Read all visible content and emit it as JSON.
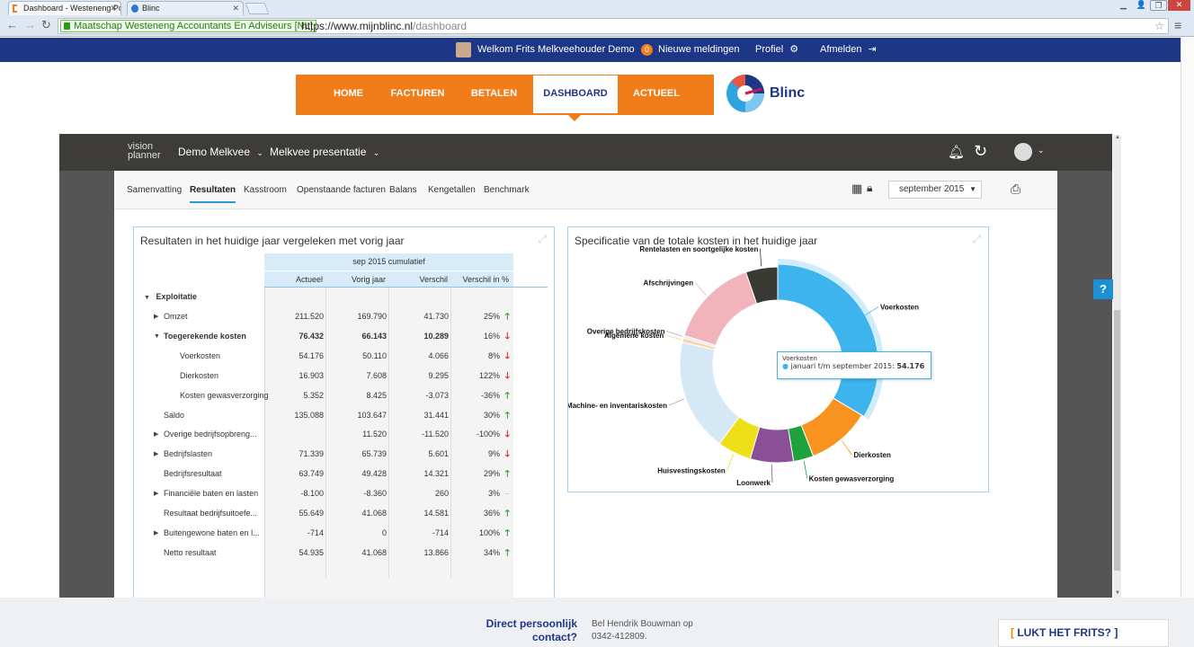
{
  "browser": {
    "tabs": [
      {
        "label": "Dashboard - Westeneng Po"
      },
      {
        "label": "Blinc"
      }
    ],
    "url_secure": "Maatschap Westeneng Accountants En Adviseurs [NL]",
    "url_host": "https://www.mijnblinc.nl",
    "url_path": "/dashboard"
  },
  "topbar": {
    "welcome": "Welkom Frits Melkveehouder Demo",
    "notif_count": "0",
    "notif_label": "Nieuwe meldingen",
    "profile": "Profiel",
    "logout": "Afmelden"
  },
  "menu": {
    "items": [
      "HOME",
      "FACTUREN",
      "BETALEN",
      "DASHBOARD",
      "ACTUEEL"
    ],
    "active": "DASHBOARD",
    "brand": "Blinc"
  },
  "visionplanner": {
    "logo_line1": "vision",
    "logo_line2": "planner",
    "company": "Demo Melkvee",
    "presentation": "Melkvee presentatie"
  },
  "subnav": {
    "items": [
      "Samenvatting",
      "Resultaten",
      "Kasstroom",
      "Openstaande facturen",
      "Balans",
      "Kengetallen",
      "Benchmark"
    ],
    "active": "Resultaten",
    "period": "september 2015"
  },
  "results": {
    "title": "Resultaten in het huidige jaar vergeleken met vorig jaar",
    "group_header": "sep 2015 cumulatief",
    "columns": [
      "Actueel",
      "Vorig jaar",
      "Verschil",
      "Verschil in %"
    ],
    "section": "Exploitatie",
    "rows": [
      {
        "label": "Omzet",
        "expand": "closed",
        "indent": 1,
        "bold": false,
        "actueel": "211.520",
        "vorig": "169.790",
        "verschil": "41.730",
        "pct": "25%",
        "trend": "up"
      },
      {
        "label": "Toegerekende kosten",
        "expand": "open",
        "indent": 1,
        "bold": true,
        "actueel": "76.432",
        "vorig": "66.143",
        "verschil": "10.289",
        "pct": "16%",
        "trend": "down"
      },
      {
        "label": "Voerkosten",
        "expand": "",
        "indent": 2,
        "bold": false,
        "actueel": "54.176",
        "vorig": "50.110",
        "verschil": "4.066",
        "pct": "8%",
        "trend": "down"
      },
      {
        "label": "Dierkosten",
        "expand": "",
        "indent": 2,
        "bold": false,
        "actueel": "16.903",
        "vorig": "7.608",
        "verschil": "9.295",
        "pct": "122%",
        "trend": "down"
      },
      {
        "label": "Kosten gewasverzorging",
        "expand": "",
        "indent": 2,
        "bold": false,
        "actueel": "5.352",
        "vorig": "8.425",
        "verschil": "-3.073",
        "pct": "-36%",
        "trend": "up"
      },
      {
        "label": "Saldo",
        "expand": "",
        "indent": 1,
        "bold": false,
        "actueel": "135.088",
        "vorig": "103.647",
        "verschil": "31.441",
        "pct": "30%",
        "trend": "up"
      },
      {
        "label": "Overige bedrijfsopbreng...",
        "expand": "closed",
        "indent": 1,
        "bold": false,
        "actueel": "",
        "vorig": "11.520",
        "verschil": "-11.520",
        "pct": "-100%",
        "trend": "down"
      },
      {
        "label": "Bedrijfslasten",
        "expand": "closed",
        "indent": 1,
        "bold": false,
        "actueel": "71.339",
        "vorig": "65.739",
        "verschil": "5.601",
        "pct": "9%",
        "trend": "down"
      },
      {
        "label": "Bedrijfsresultaat",
        "expand": "",
        "indent": 1,
        "bold": false,
        "actueel": "63.749",
        "vorig": "49.428",
        "verschil": "14.321",
        "pct": "29%",
        "trend": "up"
      },
      {
        "label": "Financiële baten en lasten",
        "expand": "closed",
        "indent": 1,
        "bold": false,
        "actueel": "-8.100",
        "vorig": "-8.360",
        "verschil": "260",
        "pct": "3%",
        "trend": "none"
      },
      {
        "label": "Resultaat bedrijfsuitoefe...",
        "expand": "",
        "indent": 1,
        "bold": false,
        "actueel": "55.649",
        "vorig": "41.068",
        "verschil": "14.581",
        "pct": "36%",
        "trend": "up"
      },
      {
        "label": "Buitengewone baten en l...",
        "expand": "closed",
        "indent": 1,
        "bold": false,
        "actueel": "-714",
        "vorig": "0",
        "verschil": "-714",
        "pct": "100%",
        "trend": "up"
      },
      {
        "label": "Netto resultaat",
        "expand": "",
        "indent": 1,
        "bold": false,
        "actueel": "54.935",
        "vorig": "41.068",
        "verschil": "13.866",
        "pct": "34%",
        "trend": "up"
      }
    ]
  },
  "chart_data": {
    "type": "pie",
    "title": "Specificatie van de totale kosten in het huidige jaar",
    "slices": [
      {
        "label": "Voerkosten",
        "value": 54176,
        "color": "#3db4ee"
      },
      {
        "label": "Dierkosten",
        "value": 16903,
        "color": "#f7931e"
      },
      {
        "label": "Kosten gewasverzorging",
        "value": 5352,
        "color": "#1ea23c"
      },
      {
        "label": "Loonwerk",
        "value": 11500,
        "color": "#8a4f97"
      },
      {
        "label": "Huisvestingskosten",
        "value": 9000,
        "color": "#ede016"
      },
      {
        "label": "Machine- en inventariskosten",
        "value": 30000,
        "color": "#d5e8f5"
      },
      {
        "label": "Algemene kosten",
        "value": 1100,
        "color": "#f8d4a6"
      },
      {
        "label": "Overige bedrijfskosten",
        "value": 700,
        "color": "#e9e9e9"
      },
      {
        "label": "Afschrijvingen",
        "value": 24000,
        "color": "#f1b4bb"
      },
      {
        "label": "Rentelasten en soortgelijke kosten",
        "value": 8500,
        "color": "#3a3a34"
      }
    ],
    "tooltip": {
      "title": "Voerkosten",
      "text": "januari t/m september 2015:",
      "value": "54.176"
    }
  },
  "footer": {
    "direct_line1": "Direct persoonlijk",
    "direct_line2": "contact?",
    "call_line1": "Bel Hendrik Bouwman op",
    "call_line2": "0342-412809.",
    "cta": "LUKT HET FRITS?"
  }
}
